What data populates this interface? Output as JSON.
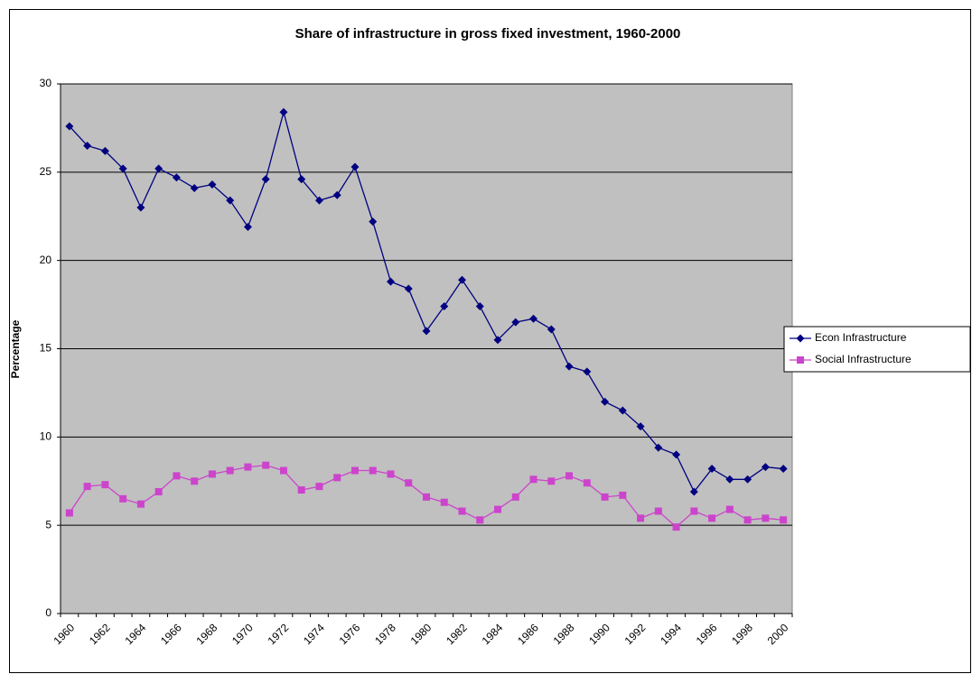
{
  "chart_data": {
    "type": "line",
    "title": "Share of infrastructure in gross fixed investment, 1960-2000",
    "y_label": "Percentage",
    "categories": [
      "1960",
      null,
      "1962",
      null,
      "1964",
      null,
      "1966",
      null,
      "1968",
      null,
      "1970",
      null,
      "1972",
      null,
      "1974",
      null,
      "1976",
      null,
      "1978",
      null,
      "1980",
      null,
      "1982",
      null,
      "1984",
      null,
      "1986",
      null,
      "1988",
      null,
      "1990",
      null,
      "1992",
      null,
      "1994",
      null,
      "1996",
      null,
      "1998",
      null,
      "2000"
    ],
    "series": [
      {
        "name": "Econ Infrastructure",
        "color": "#000080",
        "marker": "diamond",
        "values": [
          27.6,
          26.5,
          26.2,
          25.2,
          23.0,
          25.2,
          24.7,
          24.1,
          24.3,
          23.4,
          21.9,
          24.6,
          28.4,
          24.6,
          23.4,
          23.7,
          25.3,
          22.2,
          18.8,
          18.4,
          16.0,
          17.4,
          18.9,
          17.4,
          15.5,
          16.5,
          16.7,
          16.1,
          14.0,
          13.7,
          12.0,
          11.5,
          10.6,
          9.4,
          9.0,
          6.9,
          8.2,
          7.6,
          7.6,
          8.3,
          8.2
        ]
      },
      {
        "name": "Social Infrastructure",
        "color": "#cc44cc",
        "marker": "square",
        "values": [
          5.7,
          7.2,
          7.3,
          6.5,
          6.2,
          6.9,
          7.8,
          7.5,
          7.9,
          8.1,
          8.3,
          8.4,
          8.1,
          7.0,
          7.2,
          7.7,
          8.1,
          8.1,
          7.9,
          7.4,
          6.6,
          6.3,
          5.8,
          5.3,
          5.9,
          6.6,
          7.6,
          7.5,
          7.8,
          7.4,
          6.6,
          6.7,
          5.4,
          5.8,
          4.9,
          5.8,
          5.4,
          5.9,
          5.3,
          5.4,
          5.3
        ]
      }
    ],
    "ylim": [
      0,
      30
    ],
    "yticks": [
      0,
      5,
      10,
      15,
      20,
      25,
      30
    ],
    "grid": true,
    "legend": "right",
    "plot_background": "#c0c0c0"
  }
}
